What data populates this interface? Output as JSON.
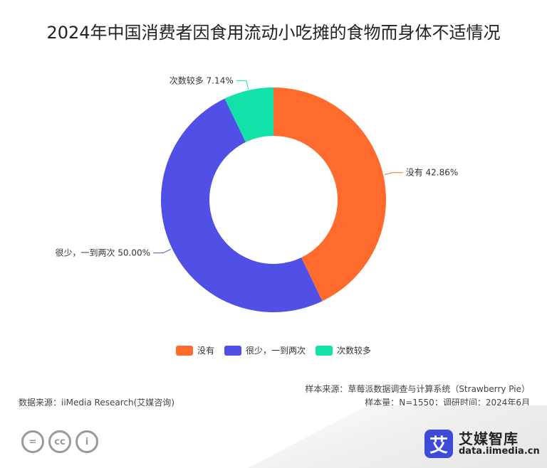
{
  "title": "2024年中国消费者因食用流动小吃摊的食物而身体不适情况",
  "chart_data": {
    "type": "pie",
    "variant": "donut",
    "slices": [
      {
        "name": "没有",
        "value": 42.86,
        "label": "没有 42.86%",
        "color": "#ff6b2c"
      },
      {
        "name": "很少，一到两次",
        "value": 50.0,
        "label": "很少，一到两次 50.00%",
        "color": "#5050e6"
      },
      {
        "name": "次数较多",
        "value": 7.14,
        "label": "次数较多 7.14%",
        "color": "#12e2a8"
      }
    ],
    "legend_position": "bottom"
  },
  "footer": {
    "source": "数据来源：iiMedia Research(艾媒咨询)",
    "sample_source": "样本来源：草莓派数据调查与计算系统（Strawberry Pie）",
    "sample_info": "样本量：N=1550；调研时间：2024年6月"
  },
  "license_icons": [
    "=",
    "cc",
    "i"
  ],
  "logo": {
    "mark": "艾",
    "name": "艾媒智库",
    "url": "data.iimedia.cn"
  }
}
